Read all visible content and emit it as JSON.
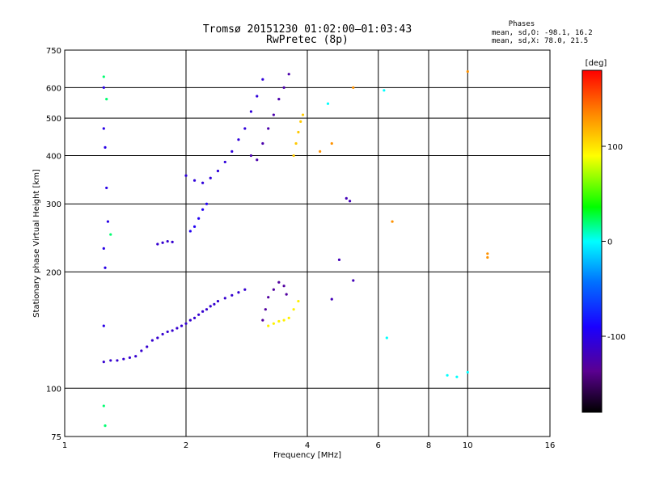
{
  "chart_data": {
    "type": "scatter",
    "title": "Tromsø 20151230 01:02:00–01:03:43",
    "subtitle": "RwPretec (8p)",
    "xlabel": "Frequency [MHz]",
    "ylabel": "Stationary phase Virtual Height [km]",
    "x_scale": "log",
    "y_scale": "log",
    "xlim": [
      1,
      16
    ],
    "ylim": [
      75,
      750
    ],
    "x_ticks": [
      1,
      2,
      4,
      6,
      8,
      10,
      16
    ],
    "x_tick_labels": [
      "1",
      "2",
      "4",
      "6",
      "8",
      "10",
      "16"
    ],
    "y_ticks": [
      75,
      100,
      200,
      300,
      400,
      500,
      600,
      750
    ],
    "y_tick_labels": [
      "75",
      "100",
      "200",
      "300",
      "400",
      "500",
      "600",
      "750"
    ],
    "grid": true,
    "stats": {
      "heading": "Phases",
      "line1": "mean, sd,O: -98.1, 16.2",
      "line2": "mean, sd,X:  78.0, 21.5"
    },
    "colorbar": {
      "label": "[deg]",
      "min": -180,
      "max": 180,
      "ticks": [
        100,
        0,
        -100
      ],
      "tick_labels": [
        "100",
        "0",
        "-100"
      ],
      "stops": [
        "#000000",
        "#5a0090",
        "#1a00ff",
        "#0070ff",
        "#00ffff",
        "#00ff00",
        "#ffff00",
        "#ff8000",
        "#ff0000"
      ]
    },
    "series": [
      {
        "phase_deg": -110,
        "x": [
          1.25,
          1.3,
          1.35,
          1.4,
          1.45,
          1.5,
          1.55,
          1.6,
          1.65,
          1.7,
          1.75,
          1.8,
          1.85,
          1.9,
          1.95,
          2.0,
          2.05,
          2.1,
          2.15,
          2.2,
          2.25,
          2.3,
          2.35,
          2.4,
          2.5,
          2.6,
          2.7,
          2.8
        ],
        "y": [
          117,
          118,
          118,
          119,
          120,
          121,
          125,
          128,
          133,
          135,
          138,
          140,
          141,
          143,
          145,
          147,
          150,
          152,
          155,
          158,
          160,
          163,
          165,
          168,
          171,
          174,
          177,
          180
        ]
      },
      {
        "phase_deg": -105,
        "x": [
          2.0,
          2.1,
          2.2,
          2.3,
          2.4,
          2.5,
          2.6,
          2.7,
          2.8,
          2.9,
          3.0,
          3.1
        ],
        "y": [
          355,
          345,
          340,
          350,
          365,
          385,
          410,
          440,
          470,
          520,
          570,
          630
        ]
      },
      {
        "phase_deg": -125,
        "x": [
          2.9,
          3.0,
          3.1,
          3.2,
          3.3,
          3.4,
          3.5,
          3.6
        ],
        "y": [
          400,
          390,
          430,
          470,
          510,
          560,
          600,
          650
        ]
      },
      {
        "phase_deg": -130,
        "x": [
          3.1,
          3.15,
          3.2,
          3.3,
          3.4,
          3.5,
          3.55
        ],
        "y": [
          150,
          160,
          172,
          180,
          188,
          184,
          175
        ]
      },
      {
        "phase_deg": 95,
        "x": [
          3.2,
          3.3,
          3.4,
          3.5,
          3.6,
          3.7,
          3.8
        ],
        "y": [
          145,
          147,
          149,
          150,
          152,
          160,
          168
        ]
      },
      {
        "phase_deg": 110,
        "x": [
          3.7,
          3.75,
          3.8,
          3.85,
          3.9
        ],
        "y": [
          400,
          430,
          460,
          490,
          510
        ]
      },
      {
        "phase_deg": -100,
        "x": [
          1.25,
          1.25,
          1.26,
          1.27,
          1.28,
          1.25,
          1.26,
          1.25
        ],
        "y": [
          600,
          470,
          420,
          330,
          270,
          230,
          205,
          145
        ]
      },
      {
        "phase_deg": 20,
        "x": [
          1.25,
          1.27,
          1.3,
          1.25,
          1.26
        ],
        "y": [
          640,
          560,
          250,
          90,
          80
        ]
      },
      {
        "phase_deg": -110,
        "x": [
          1.7,
          1.75,
          1.8,
          1.85
        ],
        "y": [
          236,
          238,
          240,
          239
        ]
      },
      {
        "phase_deg": -95,
        "x": [
          2.05,
          2.1,
          2.15,
          2.2,
          2.25
        ],
        "y": [
          255,
          262,
          275,
          290,
          300
        ]
      },
      {
        "phase_deg": -120,
        "x": [
          5.0,
          5.1,
          4.8,
          4.6,
          5.2
        ],
        "y": [
          310,
          305,
          215,
          170,
          190
        ]
      },
      {
        "phase_deg": 0,
        "x": [
          4.5,
          6.2,
          6.3,
          8.9,
          9.4,
          10.0
        ],
        "y": [
          545,
          590,
          135,
          108,
          107,
          110
        ]
      },
      {
        "phase_deg": 130,
        "x": [
          4.3,
          4.6,
          5.2,
          6.5,
          10.0,
          11.2,
          11.2
        ],
        "y": [
          410,
          430,
          600,
          270,
          660,
          223,
          218
        ]
      }
    ]
  }
}
